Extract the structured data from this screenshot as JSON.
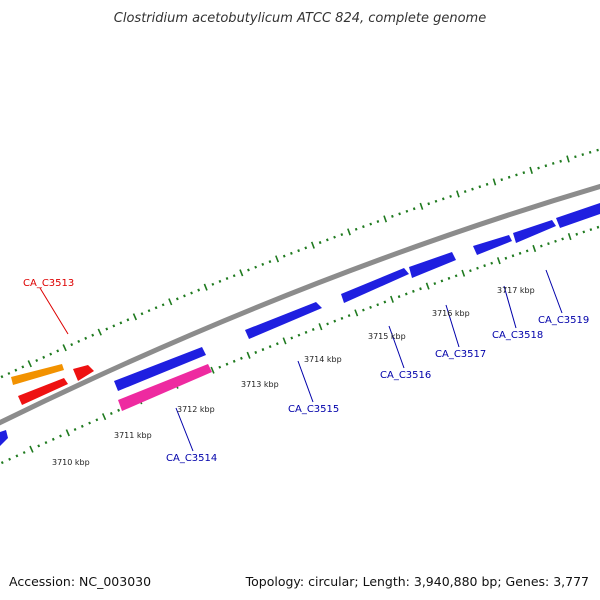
{
  "title": "Clostridium acetobutylicum ATCC 824, complete genome",
  "footer": {
    "accession": "Accession: NC_003030",
    "summary": "Topology: circular; Length: 3,940,880 bp; Genes: 3,777"
  },
  "colors": {
    "backbone": "#8c8c8c",
    "ticks": "#1f7a1f",
    "gene_label": "#0000aa",
    "highlight_label": "#dd0000",
    "gene_blue": "#1f1fe0",
    "gene_red": "#ee1111",
    "gene_orange": "#f29200",
    "gene_pink": "#ee2aa0"
  },
  "kbp_labels": [
    "3710 kbp",
    "3711 kbp",
    "3712 kbp",
    "3713 kbp",
    "3714 kbp",
    "3715 kbp",
    "3716 kbp",
    "3717 kbp"
  ],
  "gene_labels": [
    "CA_C3513",
    "CA_C3514",
    "CA_C3515",
    "CA_C3516",
    "CA_C3517",
    "CA_C3518",
    "CA_C3519"
  ]
}
